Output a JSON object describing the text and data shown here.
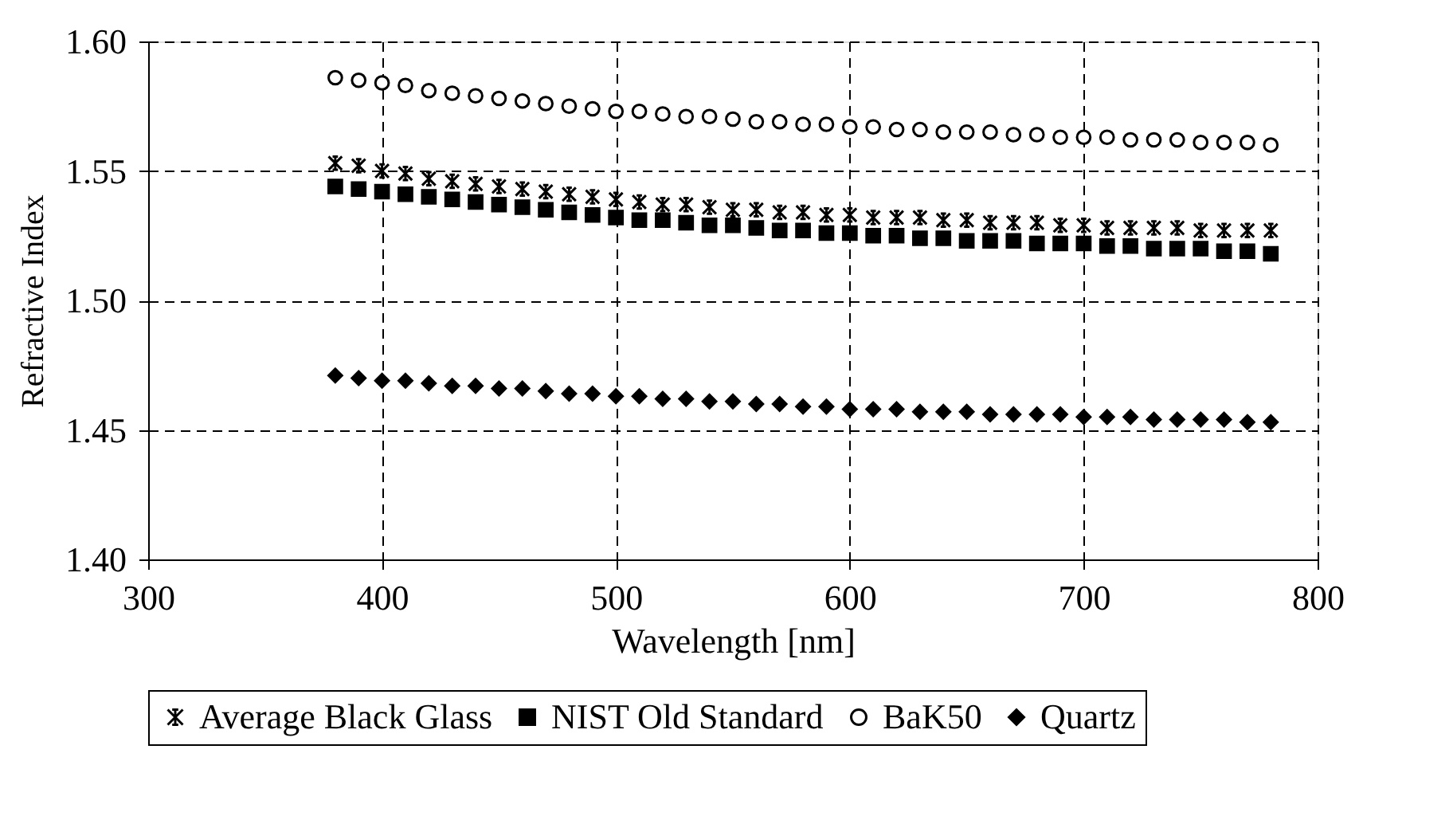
{
  "chart_data": {
    "type": "scatter",
    "xlabel": "Wavelength [nm]",
    "ylabel": "Refractive Index",
    "x": [
      380,
      390,
      400,
      410,
      420,
      430,
      440,
      450,
      460,
      470,
      480,
      490,
      500,
      510,
      520,
      530,
      540,
      550,
      560,
      570,
      580,
      590,
      600,
      610,
      620,
      630,
      640,
      650,
      660,
      670,
      680,
      690,
      700,
      710,
      720,
      730,
      740,
      750,
      760,
      770,
      780
    ],
    "series": [
      {
        "name": "Average Black Glass",
        "color": "#000000",
        "marker": "cross",
        "values": [
          1.553,
          1.552,
          1.55,
          1.549,
          1.547,
          1.546,
          1.545,
          1.544,
          1.543,
          1.542,
          1.541,
          1.54,
          1.539,
          1.538,
          1.537,
          1.537,
          1.536,
          1.535,
          1.535,
          1.534,
          1.534,
          1.533,
          1.533,
          1.532,
          1.532,
          1.532,
          1.531,
          1.531,
          1.53,
          1.53,
          1.53,
          1.529,
          1.529,
          1.528,
          1.528,
          1.528,
          1.528,
          1.527,
          1.527,
          1.527,
          1.527
        ]
      },
      {
        "name": "NIST Old Standard",
        "color": "#000000",
        "marker": "square",
        "values": [
          1.544,
          1.543,
          1.542,
          1.541,
          1.54,
          1.539,
          1.538,
          1.537,
          1.536,
          1.535,
          1.534,
          1.533,
          1.532,
          1.531,
          1.531,
          1.53,
          1.529,
          1.529,
          1.528,
          1.527,
          1.527,
          1.526,
          1.526,
          1.525,
          1.525,
          1.524,
          1.524,
          1.523,
          1.523,
          1.523,
          1.522,
          1.522,
          1.522,
          1.521,
          1.521,
          1.52,
          1.52,
          1.52,
          1.519,
          1.519,
          1.518
        ]
      },
      {
        "name": "BaK50",
        "color": "#000000",
        "marker": "circle",
        "values": [
          1.586,
          1.585,
          1.584,
          1.583,
          1.581,
          1.58,
          1.579,
          1.578,
          1.577,
          1.576,
          1.575,
          1.574,
          1.573,
          1.573,
          1.572,
          1.571,
          1.571,
          1.57,
          1.569,
          1.569,
          1.568,
          1.568,
          1.567,
          1.567,
          1.566,
          1.566,
          1.565,
          1.565,
          1.565,
          1.564,
          1.564,
          1.563,
          1.563,
          1.563,
          1.562,
          1.562,
          1.562,
          1.561,
          1.561,
          1.561,
          1.56
        ]
      },
      {
        "name": "Quartz",
        "color": "#000000",
        "marker": "diamond",
        "values": [
          1.471,
          1.47,
          1.469,
          1.469,
          1.468,
          1.467,
          1.467,
          1.466,
          1.466,
          1.465,
          1.464,
          1.464,
          1.463,
          1.463,
          1.462,
          1.462,
          1.461,
          1.461,
          1.46,
          1.46,
          1.459,
          1.459,
          1.458,
          1.458,
          1.458,
          1.457,
          1.457,
          1.457,
          1.456,
          1.456,
          1.456,
          1.456,
          1.455,
          1.455,
          1.455,
          1.454,
          1.454,
          1.454,
          1.454,
          1.453,
          1.453
        ]
      }
    ],
    "xlim": [
      300,
      800
    ],
    "xticks": [
      300,
      400,
      500,
      600,
      700,
      800
    ],
    "ylim": [
      1.4,
      1.6
    ],
    "yticks": [
      {
        "value": 1.4,
        "label": "1.40"
      },
      {
        "value": 1.45,
        "label": "1.45"
      },
      {
        "value": 1.5,
        "label": "1.50"
      },
      {
        "value": 1.55,
        "label": "1.55"
      },
      {
        "value": 1.6,
        "label": "1.60"
      }
    ],
    "grid": true,
    "legend": "bottom"
  }
}
